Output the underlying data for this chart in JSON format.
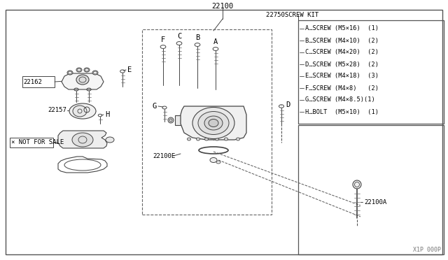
{
  "bg_color": "#ffffff",
  "part_number_main": "22100",
  "part_number_sub": "22100A",
  "part_number_e": "22100E",
  "part_22162": "22162",
  "part_22157": "22157",
  "part_not_for_sale": "× NOT FOR SALE",
  "screw_kit": "22750SCREW KIT",
  "screw_list": [
    "A…SCREW (M5×16)  ⟨1⟩",
    "B…SCREW (M4×10)  ⟨2⟩",
    "C…SCREW (M4×20)  ⟨2⟩",
    "D…SCREW (M5×28)  ⟨2⟩",
    "E…SCREW (M4×18)  ⟨3⟩",
    "F…SCREW (M4×8)   ⟨2⟩",
    "G…SCREW (M4×8.5)⟨1⟩",
    "H…BOLT  (M5×10)  ⟨1⟩"
  ],
  "diagram_id": "X1P 000P",
  "lc": "#444444",
  "tc": "#000000",
  "fs": 6.5,
  "fm": 7.5
}
